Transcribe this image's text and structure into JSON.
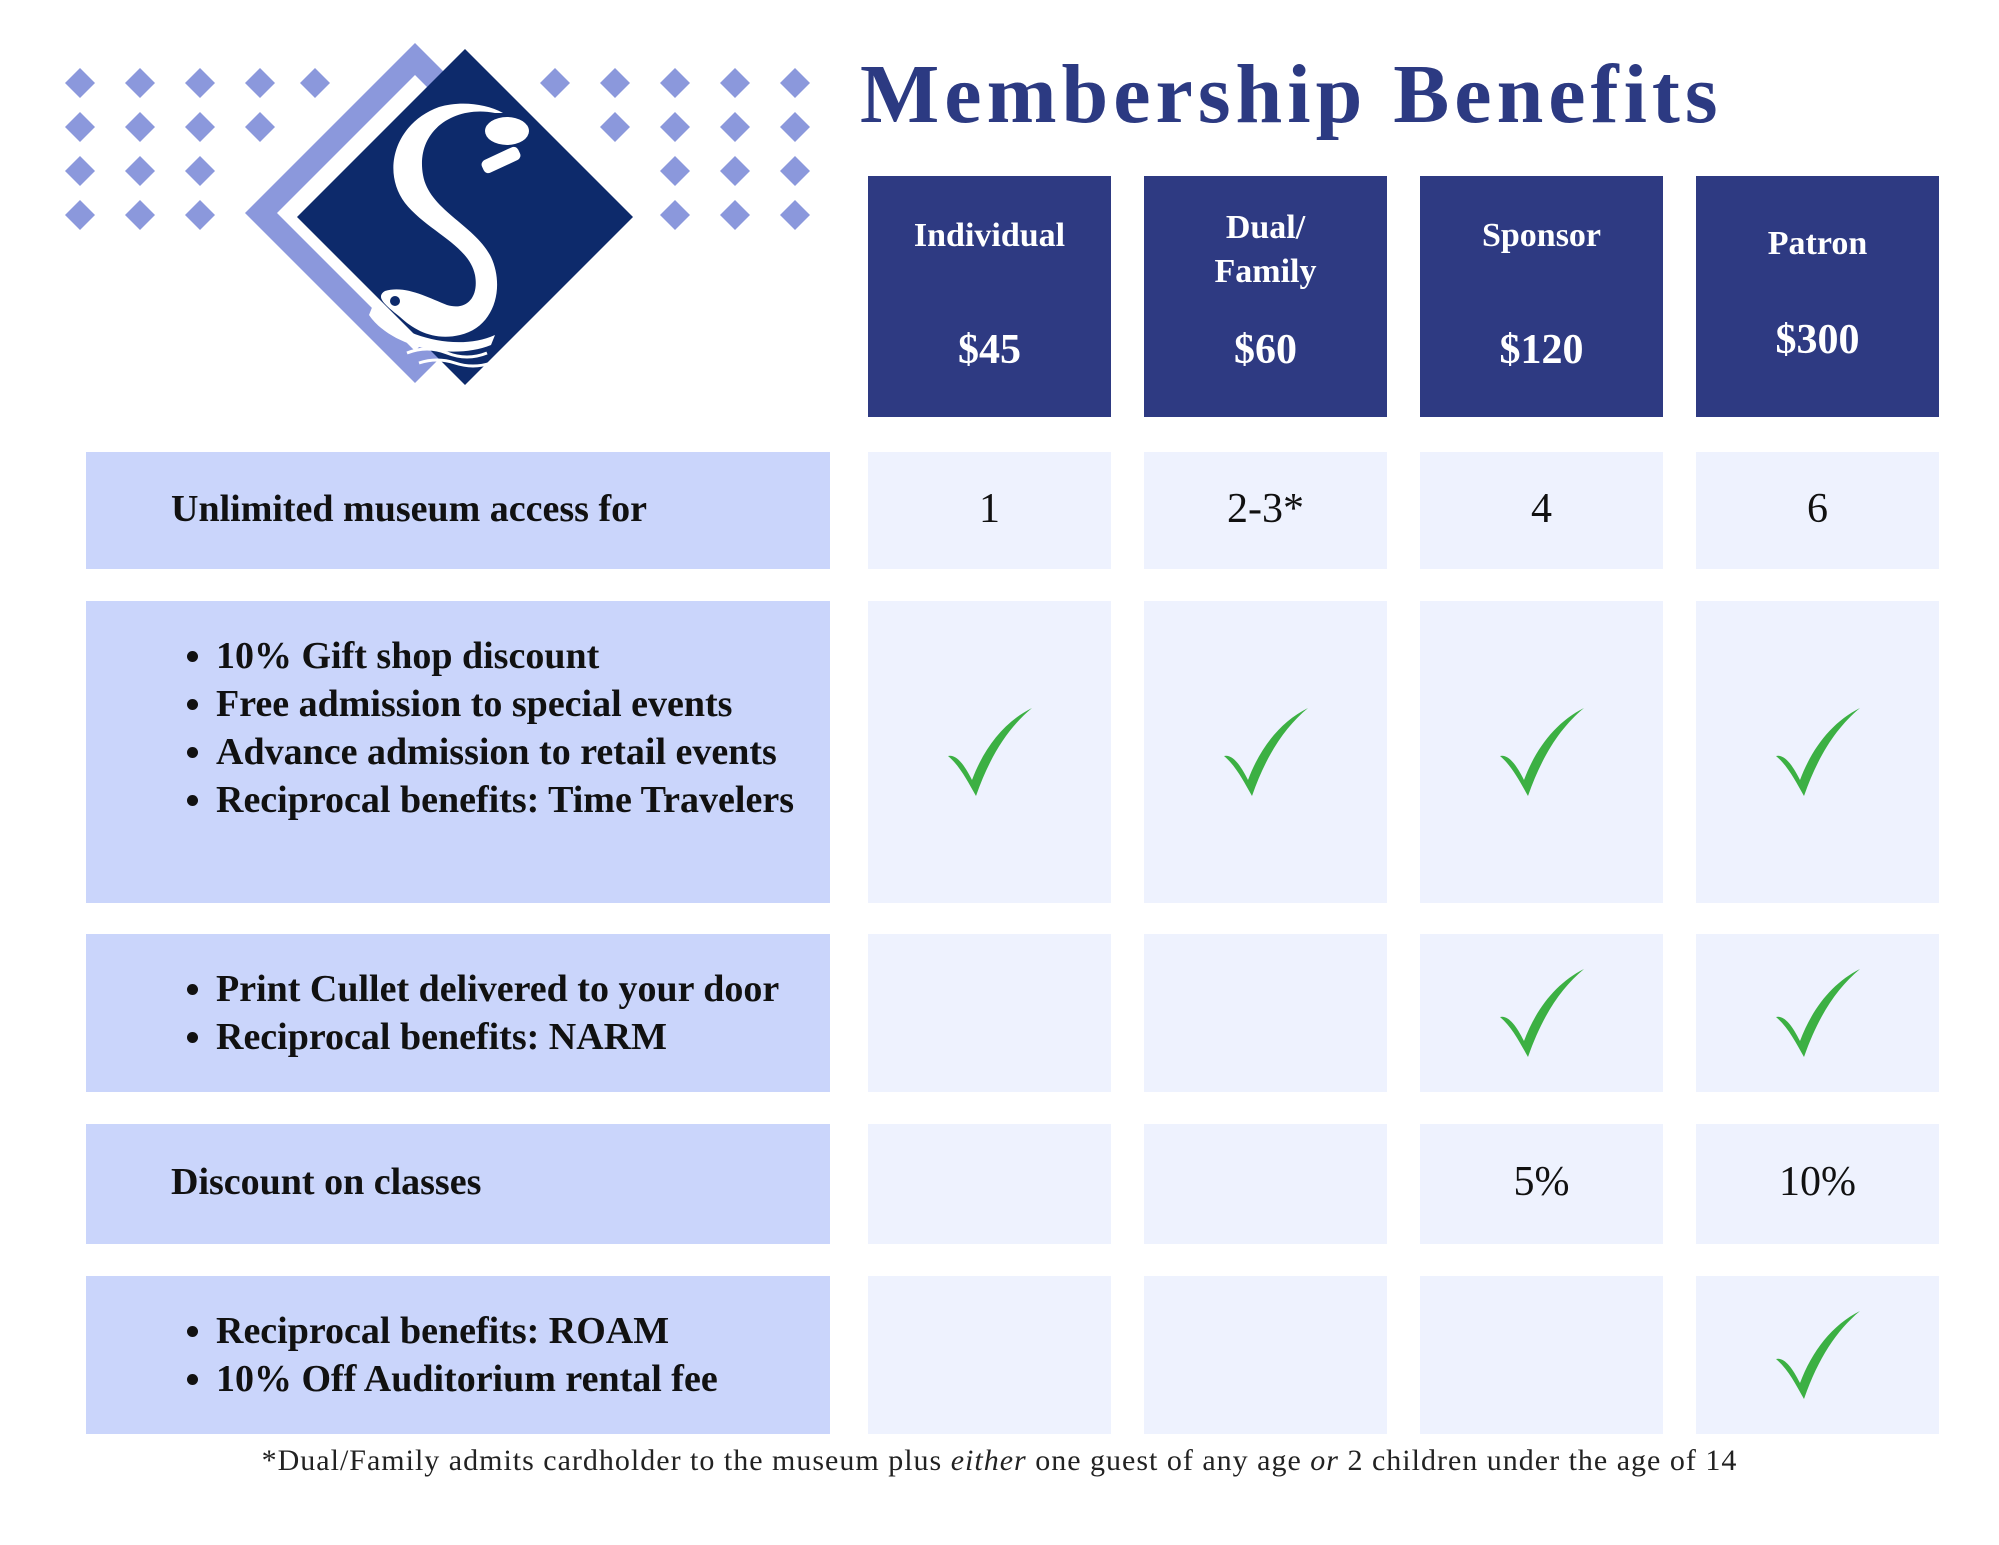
{
  "title": "Membership Benefits",
  "colors": {
    "header_bg": "#2e3a82",
    "label_bg": "#cad5fb",
    "cell_bg": "#eef2fe",
    "check": "#3cb043",
    "accent_diamonds": "#8b98dc",
    "logo_navy": "#0d2a6b"
  },
  "logo": {
    "icon": "swan-s-logo"
  },
  "tiers": [
    {
      "name": "Individual",
      "price": "$45"
    },
    {
      "name": "Dual/\nFamily",
      "price": "$60"
    },
    {
      "name": "Sponsor",
      "price": "$120"
    },
    {
      "name": "Patron",
      "price": "$300"
    }
  ],
  "rows": [
    {
      "label": "Unlimited museum access for",
      "values": [
        "1",
        "2-3*",
        "4",
        "6"
      ]
    },
    {
      "items": [
        "10% Gift shop discount",
        "Free admission to special events",
        "Advance admission to retail events",
        "Reciprocal benefits: Time Travelers"
      ],
      "checks": [
        true,
        true,
        true,
        true
      ]
    },
    {
      "items": [
        "Print Cullet delivered to your door",
        "Reciprocal benefits: NARM"
      ],
      "checks": [
        false,
        false,
        true,
        true
      ]
    },
    {
      "label": "Discount on classes",
      "values": [
        "",
        "",
        "5%",
        "10%"
      ]
    },
    {
      "items": [
        "Reciprocal benefits: ROAM",
        "10% Off Auditorium rental fee"
      ],
      "checks": [
        false,
        false,
        false,
        true
      ]
    }
  ],
  "footnote": {
    "part1": "*Dual/Family admits cardholder to the museum plus ",
    "em1": "either",
    "part2": " one guest of any age ",
    "em2": "or",
    "part3": " 2 children under the age of 14"
  }
}
